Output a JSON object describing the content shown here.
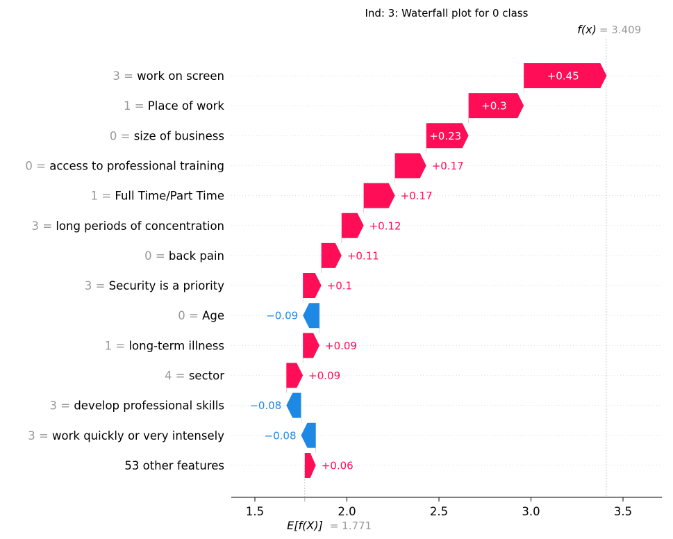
{
  "chart_data": {
    "type": "waterfall",
    "title": "Ind: 3: Waterfall plot for 0 class",
    "base_value": 1.771,
    "base_label": "E[f(X)]",
    "base_value_text": "= 1.771",
    "output_value": 3.409,
    "output_label": "f(x)",
    "output_value_text": "= 3.409",
    "xlim": [
      1.37,
      3.7
    ],
    "x_ticks": [
      1.5,
      2.0,
      2.5,
      3.0,
      3.5
    ],
    "x_tick_labels": [
      "1.5",
      "2.0",
      "2.5",
      "3.0",
      "3.5"
    ],
    "colors": {
      "positive": "#ff0d57",
      "negative": "#1e88e5",
      "muted": "#999999"
    },
    "features": [
      {
        "value": "3 =",
        "name": "work on screen",
        "contribution": 0.45,
        "label": "+0.45"
      },
      {
        "value": "1 =",
        "name": "Place of work",
        "contribution": 0.3,
        "label": "+0.3"
      },
      {
        "value": "0 =",
        "name": "size of business",
        "contribution": 0.23,
        "label": "+0.23"
      },
      {
        "value": "0 =",
        "name": "access to professional training",
        "contribution": 0.17,
        "label": "+0.17"
      },
      {
        "value": "1 =",
        "name": "Full Time/Part Time",
        "contribution": 0.17,
        "label": "+0.17"
      },
      {
        "value": "3 =",
        "name": "long periods of concentration",
        "contribution": 0.12,
        "label": "+0.12"
      },
      {
        "value": "0 =",
        "name": "back pain",
        "contribution": 0.11,
        "label": "+0.11"
      },
      {
        "value": "3 =",
        "name": "Security is a priority",
        "contribution": 0.1,
        "label": "+0.1"
      },
      {
        "value": "0 =",
        "name": "Age",
        "contribution": -0.09,
        "label": "−0.09"
      },
      {
        "value": "1 =",
        "name": "long-term illness",
        "contribution": 0.09,
        "label": "+0.09"
      },
      {
        "value": "4 =",
        "name": "sector",
        "contribution": 0.09,
        "label": "+0.09"
      },
      {
        "value": "3 =",
        "name": "develop professional skills",
        "contribution": -0.08,
        "label": "−0.08"
      },
      {
        "value": "3 =",
        "name": "work quickly or very intensely",
        "contribution": -0.08,
        "label": "−0.08"
      },
      {
        "value": "",
        "name": "53 other features",
        "contribution": 0.06,
        "label": "+0.06"
      }
    ]
  }
}
